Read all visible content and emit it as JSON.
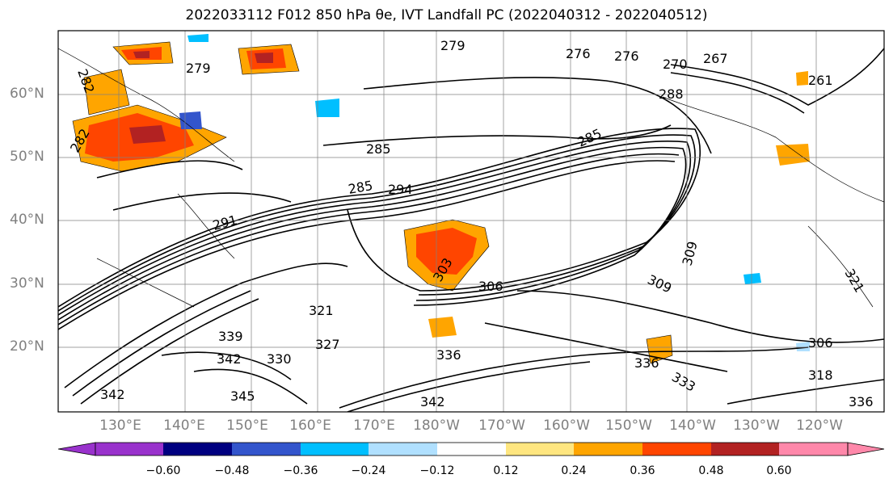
{
  "title": "2022033112 F012 850 hPa θe, IVT Landfall PC (2022040312 - 2022040512)",
  "map": {
    "lat_labels": [
      "60°N",
      "50°N",
      "40°N",
      "30°N",
      "20°N"
    ],
    "lon_labels": [
      "130°E",
      "140°E",
      "150°E",
      "160°E",
      "170°E",
      "180°W",
      "170°W",
      "160°W",
      "150°W",
      "140°W",
      "130°W",
      "120°W"
    ],
    "contour_labels": [
      "282",
      "279",
      "279",
      "276",
      "276",
      "270",
      "267",
      "261",
      "285",
      "285",
      "288",
      "285",
      "294",
      "282",
      "291",
      "303",
      "306",
      "309",
      "309",
      "321",
      "339",
      "342",
      "330",
      "327",
      "342",
      "345",
      "336",
      "333",
      "336",
      "321",
      "318",
      "306",
      "342",
      "336"
    ],
    "colors": {
      "land_outline": "#000000",
      "grid": "#808080",
      "shade_pos": [
        "#ffe680",
        "#ffa500",
        "#ff4500",
        "#b22222"
      ],
      "shade_neg": [
        "#b0e0ff",
        "#00bfff",
        "#3355cc"
      ]
    }
  },
  "colorbar": {
    "ticks": [
      "−0.60",
      "−0.48",
      "−0.36",
      "−0.24",
      "−0.12",
      "0.12",
      "0.24",
      "0.36",
      "0.48",
      "0.60"
    ],
    "colors": [
      "#9932cc",
      "#000080",
      "#3355cc",
      "#00bfff",
      "#b0e0ff",
      "#ffffff",
      "#ffe680",
      "#ffa500",
      "#ff4500",
      "#b22222",
      "#ff88aa"
    ]
  }
}
